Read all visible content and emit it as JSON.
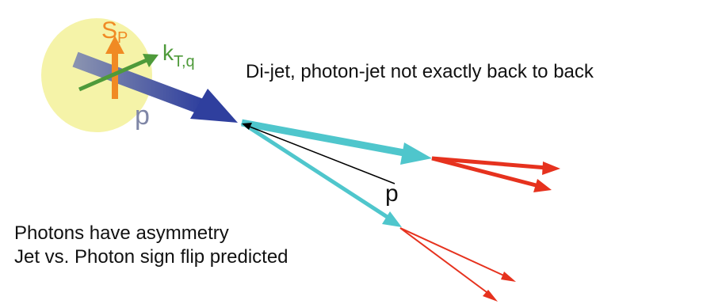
{
  "labels": {
    "spin": {
      "main": "S",
      "sub": "P"
    },
    "kt": {
      "main": "k",
      "sub": "T,q"
    },
    "proton": "p",
    "dijet_note": "Di-jet, photon-jet not exactly back to back",
    "jet_p": "p",
    "note_lines": [
      "Photons have asymmetry",
      "Jet vs. Photon sign flip predicted"
    ]
  }
}
